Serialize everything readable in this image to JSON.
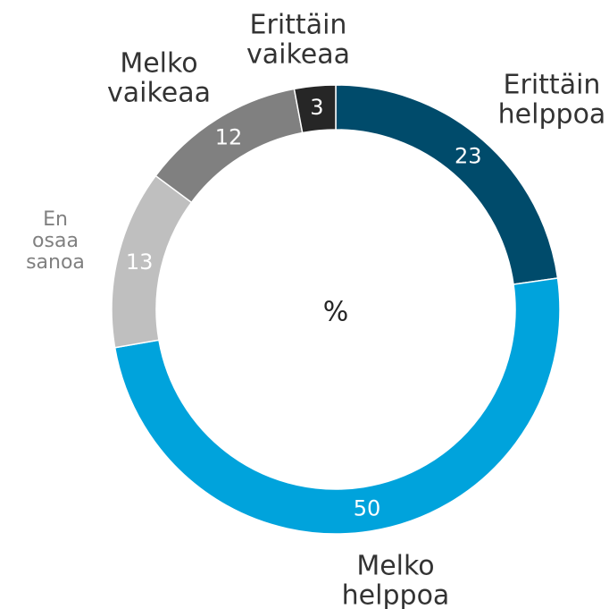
{
  "chart_data": {
    "type": "donut",
    "center_label": "%",
    "categories": [
      "Erittäin helppoa",
      "Melko helppoa",
      "En osaa sanoa",
      "Melko vaikeaa",
      "Erittäin vaikeaa"
    ],
    "values": [
      23,
      50,
      13,
      12,
      3
    ],
    "colors": [
      "#004b6b",
      "#00a3dc",
      "#bfbfbf",
      "#808080",
      "#262626"
    ]
  }
}
